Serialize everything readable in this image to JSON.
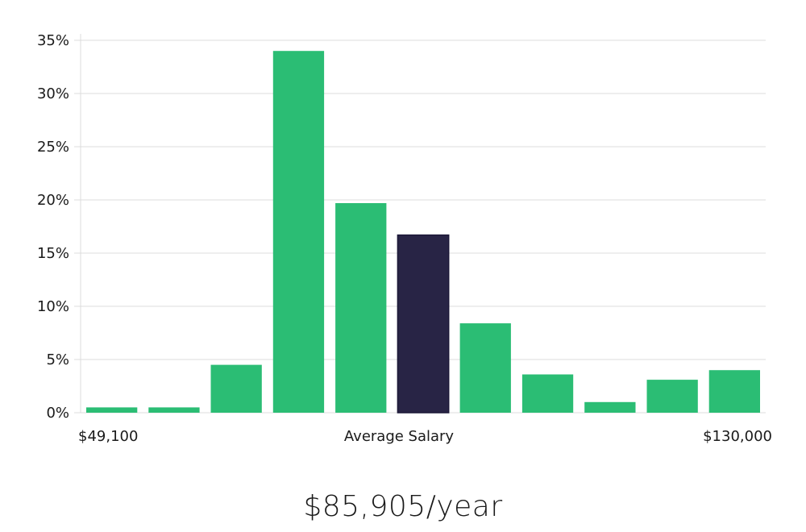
{
  "chart_data": {
    "type": "bar",
    "title": "",
    "xlabel": "Average Salary",
    "ylabel": "",
    "x_min_label": "$49,100",
    "x_max_label": "$130,000",
    "values": [
      0.5,
      0.5,
      4.5,
      34,
      19.7,
      16.7,
      8.4,
      3.6,
      1.0,
      3.1,
      4.0
    ],
    "highlight_index": 5,
    "ylim": [
      0,
      35
    ],
    "yticks": [
      0,
      5,
      10,
      15,
      20,
      25,
      30,
      35
    ],
    "ytick_labels": [
      "0%",
      "5%",
      "10%",
      "15%",
      "20%",
      "25%",
      "30%",
      "35%"
    ],
    "grid": true,
    "colors": {
      "bar": "#2bbd74",
      "highlight": "#282445"
    }
  },
  "salary": {
    "value_text": "$85,905/year"
  }
}
